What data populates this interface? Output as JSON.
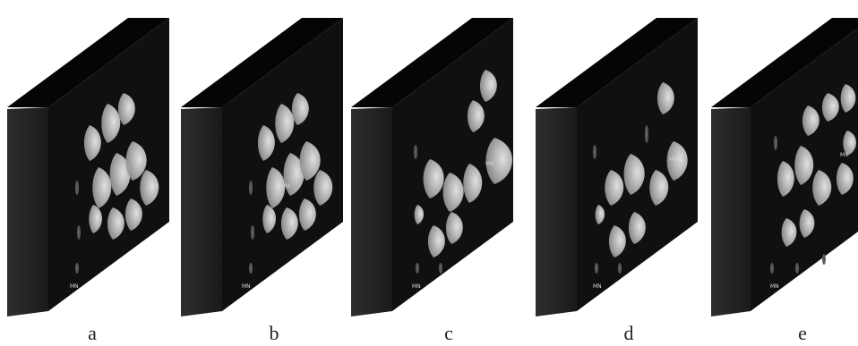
{
  "figure": {
    "panels": [
      {
        "id": "a",
        "label": "a",
        "max_marker": "MX",
        "min_marker": "MN"
      },
      {
        "id": "b",
        "label": "b",
        "max_marker": "MX",
        "min_marker": "MN"
      },
      {
        "id": "c",
        "label": "c",
        "max_marker": "MX",
        "min_marker": "MN"
      },
      {
        "id": "d",
        "label": "d",
        "max_marker": "MX",
        "min_marker": "MN"
      },
      {
        "id": "e",
        "label": "e",
        "max_marker": "MX",
        "min_marker": "MN"
      }
    ],
    "colors": {
      "background": "#ffffff",
      "block_front": "#101010",
      "block_side": "#262626",
      "block_top": "#050505",
      "bulge_light": "#f2f2f2",
      "bulge_dark": "#8a8a8a"
    }
  }
}
